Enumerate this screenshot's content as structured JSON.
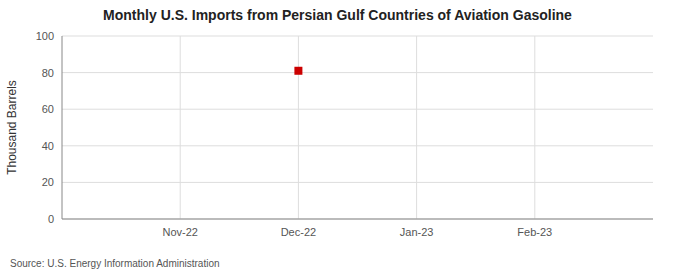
{
  "chart_data": {
    "type": "scatter",
    "title": "Monthly U.S. Imports from Persian Gulf Countries of Aviation Gasoline",
    "y_label": "Thousand Barrels",
    "source": "Source: U.S. Energy Information Administration",
    "categories": [
      "Nov-22",
      "Dec-22",
      "Jan-23",
      "Feb-23"
    ],
    "values": [
      null,
      81,
      null,
      null
    ],
    "color": "#cc0000",
    "marker": "square",
    "ylim": [
      0,
      100
    ],
    "yticks": [
      0,
      20,
      40,
      60,
      80,
      100
    ],
    "grid": true
  }
}
